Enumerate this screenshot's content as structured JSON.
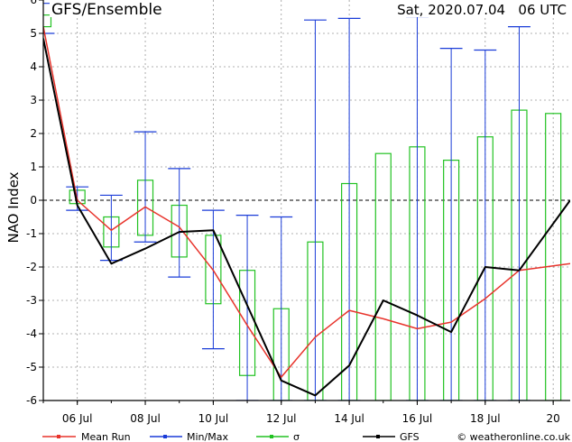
{
  "header": {
    "title": "GFS/Ensemble",
    "run_time": "Sat, 2020.07.04   06 UTC"
  },
  "legend": {
    "mean_run": "Mean Run",
    "min_max": "Min/Max",
    "sigma": "σ",
    "gfs": "GFS",
    "credit": "© weatheronline.co.uk"
  },
  "colors": {
    "mean_run": "#e8342c",
    "min_max": "#1a3cd8",
    "sigma": "#22c222",
    "gfs": "#000000",
    "grid": "#999999"
  },
  "chart_data": {
    "type": "line",
    "ylabel": "NAO Index",
    "ylim": [
      -6,
      6
    ],
    "yticks": [
      -6,
      -5,
      -4,
      -3,
      -2,
      -1,
      0,
      1,
      2,
      3,
      4,
      5,
      6
    ],
    "xlim": [
      0,
      15.5
    ],
    "xticks": [
      {
        "x": 1,
        "label": "06 Jul"
      },
      {
        "x": 3,
        "label": "08 Jul"
      },
      {
        "x": 5,
        "label": "10 Jul"
      },
      {
        "x": 7,
        "label": "12 Jul"
      },
      {
        "x": 9,
        "label": "14 Jul"
      },
      {
        "x": 11,
        "label": "16 Jul"
      },
      {
        "x": 13,
        "label": "18 Jul"
      },
      {
        "x": 15,
        "label": "20"
      }
    ],
    "series": [
      {
        "name": "Mean Run",
        "x": [
          0,
          1,
          2,
          3,
          4,
          5,
          6,
          7,
          8,
          9,
          10,
          11,
          12,
          13,
          14,
          15.5
        ],
        "values": [
          5.2,
          0.0,
          -0.9,
          -0.2,
          -0.8,
          -2.1,
          -3.75,
          -5.3,
          -4.1,
          -3.3,
          -3.55,
          -3.85,
          -3.65,
          -2.95,
          -2.1,
          -1.9
        ]
      },
      {
        "name": "GFS",
        "x": [
          0,
          1,
          2,
          3,
          4,
          5,
          6,
          7,
          8,
          9,
          10,
          11,
          12,
          13,
          14,
          15.5
        ],
        "values": [
          4.85,
          -0.15,
          -1.9,
          -1.45,
          -0.95,
          -0.9,
          -3.15,
          -5.4,
          -5.85,
          -4.95,
          -3.0,
          -3.45,
          -3.95,
          -2.0,
          -2.1,
          0.0
        ]
      }
    ],
    "minmax": [
      {
        "x": 0,
        "min": 5.0,
        "max": 5.9
      },
      {
        "x": 1,
        "min": -0.3,
        "max": 0.4
      },
      {
        "x": 2,
        "min": -1.8,
        "max": 0.15
      },
      {
        "x": 3,
        "min": -1.25,
        "max": 2.05
      },
      {
        "x": 4,
        "min": -2.3,
        "max": 0.95
      },
      {
        "x": 5,
        "min": -4.45,
        "max": -0.3
      },
      {
        "x": 6,
        "min": -6.0,
        "max": -0.45
      },
      {
        "x": 7,
        "min": -6.0,
        "max": -0.5
      },
      {
        "x": 8,
        "min": -6.0,
        "max": 5.4
      },
      {
        "x": 9,
        "min": -6.0,
        "max": 5.45
      },
      {
        "x": 11,
        "min": -6.0,
        "max": 5.5
      },
      {
        "x": 12,
        "min": -6.0,
        "max": 4.55
      },
      {
        "x": 13,
        "min": -6.0,
        "max": 4.5
      },
      {
        "x": 14,
        "min": -6.0,
        "max": 5.2
      }
    ],
    "sigma": [
      {
        "x": 0,
        "low": 5.2,
        "high": 5.55
      },
      {
        "x": 1,
        "low": -0.1,
        "high": 0.3
      },
      {
        "x": 2,
        "low": -1.4,
        "high": -0.5
      },
      {
        "x": 3,
        "low": -1.05,
        "high": 0.6
      },
      {
        "x": 4,
        "low": -1.7,
        "high": -0.15
      },
      {
        "x": 5,
        "low": -3.1,
        "high": -1.05
      },
      {
        "x": 6,
        "low": -5.25,
        "high": -2.1
      },
      {
        "x": 7,
        "low": -6.0,
        "high": -3.25
      },
      {
        "x": 8,
        "low": -6.0,
        "high": -1.25
      },
      {
        "x": 9,
        "low": -6.0,
        "high": 0.5
      },
      {
        "x": 10,
        "low": -6.0,
        "high": 1.4
      },
      {
        "x": 11,
        "low": -6.0,
        "high": 1.6
      },
      {
        "x": 12,
        "low": -6.0,
        "high": 1.2
      },
      {
        "x": 13,
        "low": -6.0,
        "high": 1.9
      },
      {
        "x": 14,
        "low": -6.0,
        "high": 2.7
      },
      {
        "x": 15,
        "low": -6.0,
        "high": 2.6
      }
    ],
    "grid": true,
    "zero_line": "dashed"
  }
}
